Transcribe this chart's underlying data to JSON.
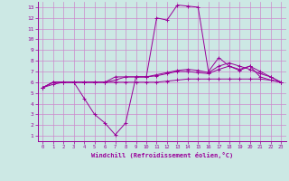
{
  "xlabel": "Windchill (Refroidissement éolien,°C)",
  "background_color": "#cce8e4",
  "grid_color": "#cc88cc",
  "line_color": "#990099",
  "xlim": [
    -0.5,
    23.5
  ],
  "ylim": [
    0.5,
    13.5
  ],
  "xticks": [
    0,
    1,
    2,
    3,
    4,
    5,
    6,
    7,
    8,
    9,
    10,
    11,
    12,
    13,
    14,
    15,
    16,
    17,
    18,
    19,
    20,
    21,
    22,
    23
  ],
  "yticks": [
    1,
    2,
    3,
    4,
    5,
    6,
    7,
    8,
    9,
    10,
    11,
    12,
    13
  ],
  "series": [
    [
      5.5,
      6.0,
      6.0,
      6.0,
      4.5,
      3.0,
      2.2,
      1.1,
      2.2,
      6.5,
      6.5,
      12.0,
      11.8,
      13.2,
      13.1,
      13.0,
      7.0,
      8.3,
      7.5,
      7.1,
      7.5,
      6.5,
      6.2,
      6.0
    ],
    [
      5.5,
      6.0,
      6.0,
      6.0,
      6.0,
      6.0,
      6.0,
      6.0,
      6.0,
      6.0,
      6.0,
      6.0,
      6.1,
      6.2,
      6.3,
      6.3,
      6.3,
      6.3,
      6.3,
      6.3,
      6.3,
      6.3,
      6.2,
      6.0
    ],
    [
      5.5,
      6.0,
      6.0,
      6.0,
      6.0,
      6.0,
      6.0,
      6.2,
      6.5,
      6.5,
      6.5,
      6.7,
      6.9,
      7.1,
      7.2,
      7.1,
      6.9,
      7.5,
      7.8,
      7.5,
      7.2,
      6.8,
      6.5,
      6.0
    ],
    [
      5.5,
      5.8,
      6.0,
      6.0,
      6.0,
      6.0,
      6.0,
      6.5,
      6.5,
      6.5,
      6.5,
      6.6,
      6.8,
      7.0,
      7.0,
      6.9,
      6.8,
      7.2,
      7.5,
      7.2,
      7.5,
      7.0,
      6.5,
      6.0
    ]
  ]
}
